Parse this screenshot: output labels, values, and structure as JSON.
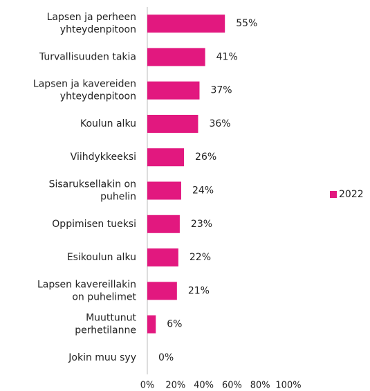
{
  "chart_data": {
    "type": "bar",
    "orientation": "horizontal",
    "categories": [
      "Lapsen ja perheen\nyhteydenpitoon",
      "Turvallisuuden takia",
      "Lapsen ja kavereiden\nyhteydenpitoon",
      "Koulun alku",
      "Viihdykkeeksi",
      "Sisaruksellakin on\npuhelin",
      "Oppimisen tueksi",
      "Esikoulun alku",
      "Lapsen kavereillakin\non puhelimet",
      "Muuttunut\nperhetilanne",
      "Jokin muu syy"
    ],
    "series": [
      {
        "name": "2022",
        "color": "#e2187f",
        "values": [
          55,
          41,
          37,
          36,
          26,
          24,
          23,
          22,
          21,
          6,
          0
        ],
        "value_labels": [
          "55%",
          "41%",
          "37%",
          "36%",
          "26%",
          "24%",
          "23%",
          "22%",
          "21%",
          "6%",
          "0%"
        ]
      }
    ],
    "xlim": [
      0,
      100
    ],
    "xticks": [
      {
        "value": 0,
        "label": "0%"
      },
      {
        "value": 20,
        "label": "20%"
      },
      {
        "value": 40,
        "label": "40%"
      },
      {
        "value": 60,
        "label": "60%"
      },
      {
        "value": 80,
        "label": "80%"
      },
      {
        "value": 100,
        "label": "100%"
      }
    ],
    "legend": "right"
  }
}
